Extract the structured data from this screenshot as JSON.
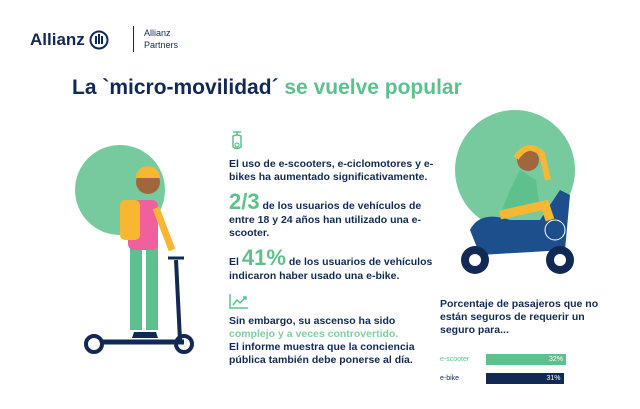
{
  "header": {
    "brand": "Allianz",
    "sub_brand_line1": "Allianz",
    "sub_brand_line2": "Partners"
  },
  "title": {
    "part1": "La `micro-movilidad´",
    "part2": "se vuelve popular"
  },
  "stats": {
    "intro": "El uso de e-scooters, e-ciclomotores y e-bikes ha aumentado significativamente.",
    "stat1_value": "2/3",
    "stat1_text_a": "de los usuarios de vehículos de entre",
    "stat1_text_b": "18 y 24 años han utilizado una e-scooter.",
    "stat2_prefix": "El",
    "stat2_value": "41%",
    "stat2_text_a": "de los usuarios de vehículos",
    "stat2_text_b": "indicaron haber usado una e-bike.",
    "trend_a": "Sin embargo, su ascenso ha sido",
    "trend_highlight": "complejo y a veces controvertido.",
    "trend_b": "El informe muestra que la conciencia pública también debe ponerse al día."
  },
  "colors": {
    "navy": "#122a53",
    "green": "#5ec18d"
  },
  "chart_data": {
    "type": "bar",
    "title": "Porcentaje de pasajeros que no están seguros de requerir un seguro para...",
    "categories": [
      "e-scooter",
      "e-bike"
    ],
    "values": [
      32,
      31
    ],
    "value_labels": [
      "32%",
      "31%"
    ],
    "colors": [
      "#5ec18d",
      "#122a53"
    ]
  }
}
